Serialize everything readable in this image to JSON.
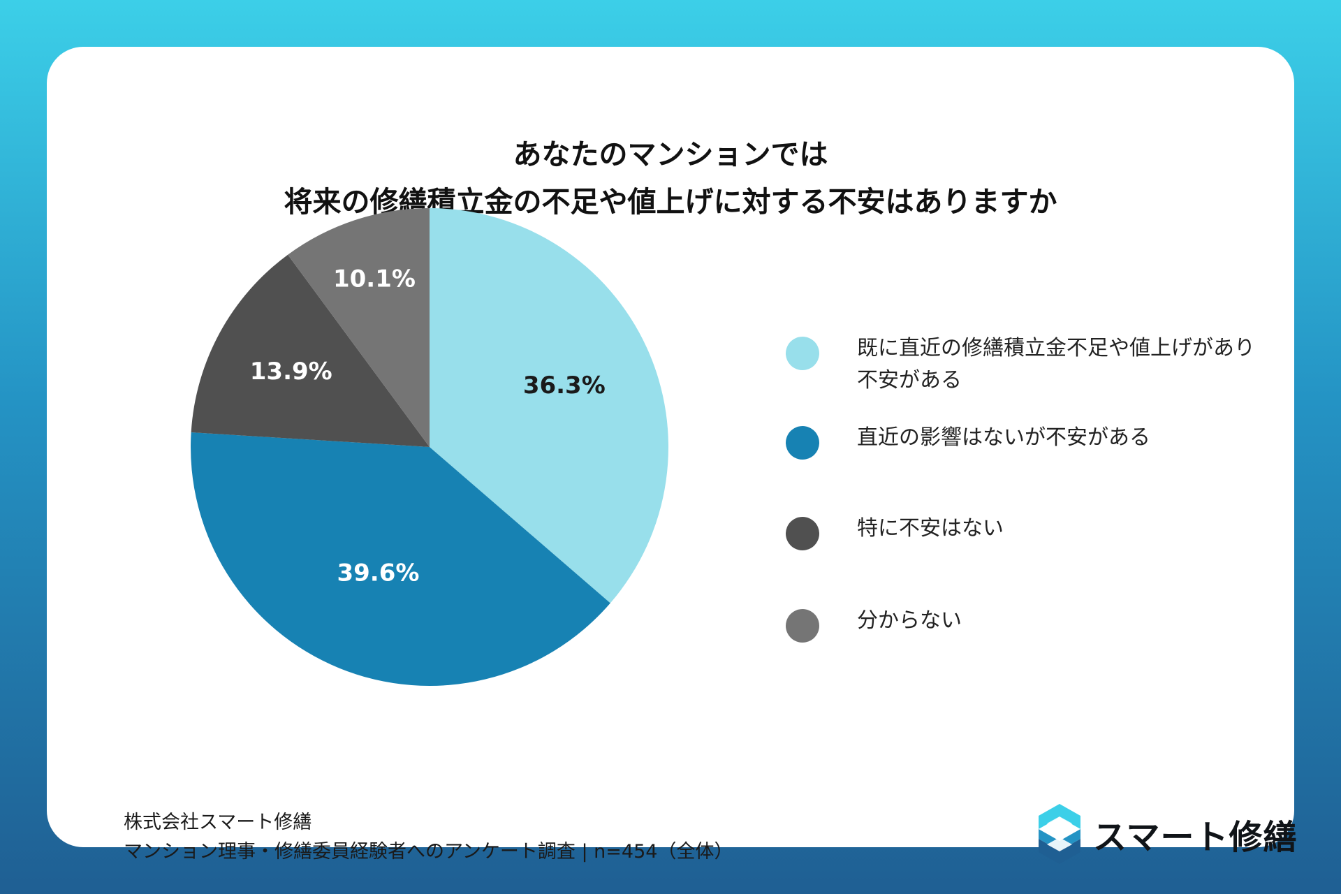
{
  "title": {
    "line1": "あなたのマンションでは",
    "line2": "将来の修繕積立金の不足や値上げに対する不安はありますか"
  },
  "chart_data": {
    "type": "pie",
    "title": "あなたのマンションでは 将来の修繕積立金の不足や値上げに対する不安はありますか",
    "categories": [
      "既に直近の修繕積立金不足や値上げがあり\n不安がある",
      "直近の影響はないが不安がある",
      "特に不安はない",
      "分からない"
    ],
    "values": [
      36.3,
      39.6,
      13.9,
      10.1
    ],
    "labels": [
      "36.3%",
      "39.6%",
      "13.9%",
      "10.1%"
    ],
    "colors": [
      "#98dfeb",
      "#1782b3",
      "#505050",
      "#757575"
    ],
    "label_colors": [
      "#1a1a1a",
      "#ffffff",
      "#ffffff",
      "#ffffff"
    ],
    "legend_position": "right"
  },
  "source": {
    "line1": "株式会社スマート修繕",
    "line2": "マンション理事・修繕委員経験者へのアンケート調査 | n=454（全体）"
  },
  "logo": {
    "text": "スマート修繕",
    "icon": "s-hexagon-logo-icon",
    "colors": {
      "light": "#3ccfe8",
      "dark": "#1f5f93"
    }
  }
}
